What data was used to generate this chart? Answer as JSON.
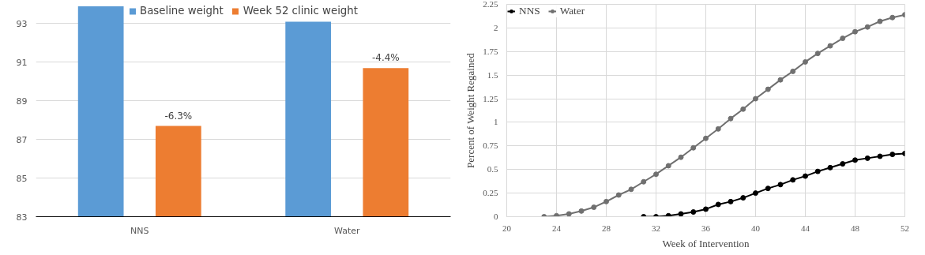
{
  "chart_data": [
    {
      "type": "bar",
      "categories": [
        "NNS",
        "Water"
      ],
      "series": [
        {
          "name": "Baseline weight",
          "color": "#5b9bd5",
          "values": [
            93.9,
            93.1
          ]
        },
        {
          "name": "Week 52 clinic weight",
          "color": "#ed7d31",
          "values": [
            87.7,
            90.7
          ]
        }
      ],
      "ylim": [
        83,
        94
      ],
      "yticks": [
        83,
        85,
        87,
        89,
        91,
        93
      ],
      "grid": "y",
      "legend": "top center",
      "annotations": [
        "-6.3%",
        "-4.4%"
      ]
    },
    {
      "type": "line",
      "xlabel": "Week of Intervention",
      "ylabel": "Percent of Weight Regained",
      "xlim": [
        20,
        52
      ],
      "xticks": [
        20,
        24,
        28,
        32,
        36,
        40,
        44,
        48,
        52
      ],
      "ylim": [
        0,
        2.25
      ],
      "yticks": [
        0,
        0.25,
        0.5,
        0.75,
        1,
        1.25,
        1.5,
        1.75,
        2,
        2.25
      ],
      "grid": true,
      "legend": "top left",
      "marker": "circle",
      "line_style": "solid",
      "series": [
        {
          "name": "NNS",
          "color": "#000000",
          "x": [
            31,
            32,
            33,
            34,
            35,
            36,
            37,
            38,
            39,
            40,
            41,
            42,
            43,
            44,
            45,
            46,
            47,
            48,
            49,
            50,
            51,
            52
          ],
          "values": [
            0,
            0,
            0.01,
            0.03,
            0.05,
            0.08,
            0.13,
            0.16,
            0.2,
            0.25,
            0.3,
            0.34,
            0.39,
            0.43,
            0.48,
            0.52,
            0.56,
            0.6,
            0.62,
            0.64,
            0.66,
            0.67
          ]
        },
        {
          "name": "Water",
          "color": "#707070",
          "x": [
            23,
            24,
            25,
            26,
            27,
            28,
            29,
            30,
            31,
            32,
            33,
            34,
            35,
            36,
            37,
            38,
            39,
            40,
            41,
            42,
            43,
            44,
            45,
            46,
            47,
            48,
            49,
            50,
            51,
            52
          ],
          "values": [
            0,
            0.01,
            0.03,
            0.06,
            0.1,
            0.16,
            0.23,
            0.29,
            0.37,
            0.45,
            0.54,
            0.63,
            0.73,
            0.83,
            0.93,
            1.04,
            1.14,
            1.25,
            1.35,
            1.45,
            1.54,
            1.64,
            1.73,
            1.81,
            1.89,
            1.96,
            2.01,
            2.07,
            2.11,
            2.14
          ]
        }
      ]
    }
  ]
}
